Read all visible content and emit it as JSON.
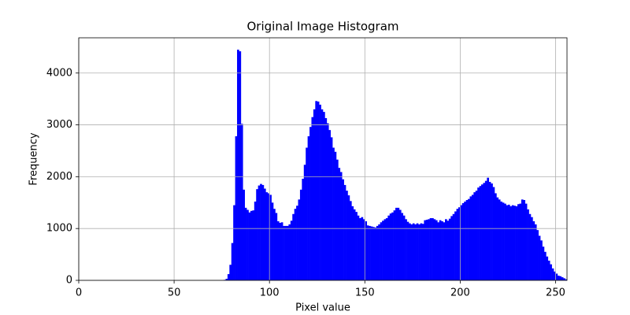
{
  "chart_data": {
    "type": "histogram",
    "title": "Original Image Histogram",
    "xlabel": "Pixel value",
    "ylabel": "Frequency",
    "color": "#0000ff",
    "grid": true,
    "bins": [
      0,
      1,
      2,
      3,
      4,
      5,
      6,
      7,
      8,
      9,
      10,
      11,
      12,
      13,
      14,
      15,
      16,
      17,
      18,
      19,
      20,
      21,
      22,
      23,
      24,
      25,
      26,
      27,
      28,
      29,
      30,
      31,
      32,
      33,
      34,
      35,
      36,
      37,
      38,
      39,
      40,
      41,
      42,
      43,
      44,
      45,
      46,
      47,
      48,
      49,
      50,
      51,
      52,
      53,
      54,
      55,
      56,
      57,
      58,
      59,
      60,
      61,
      62,
      63,
      64,
      65,
      66,
      67,
      68,
      69,
      70,
      71,
      72,
      73,
      74,
      75,
      76,
      77,
      78,
      79,
      80,
      81,
      82,
      83,
      84,
      85,
      86,
      87,
      88,
      89,
      90,
      91,
      92,
      93,
      94,
      95,
      96,
      97,
      98,
      99,
      100,
      101,
      102,
      103,
      104,
      105,
      106,
      107,
      108,
      109,
      110,
      111,
      112,
      113,
      114,
      115,
      116,
      117,
      118,
      119,
      120,
      121,
      122,
      123,
      124,
      125,
      126,
      127,
      128,
      129,
      130,
      131,
      132,
      133,
      134,
      135,
      136,
      137,
      138,
      139,
      140,
      141,
      142,
      143,
      144,
      145,
      146,
      147,
      148,
      149,
      150,
      151,
      152,
      153,
      154,
      155,
      156,
      157,
      158,
      159,
      160,
      161,
      162,
      163,
      164,
      165,
      166,
      167,
      168,
      169,
      170,
      171,
      172,
      173,
      174,
      175,
      176,
      177,
      178,
      179,
      180,
      181,
      182,
      183,
      184,
      185,
      186,
      187,
      188,
      189,
      190,
      191,
      192,
      193,
      194,
      195,
      196,
      197,
      198,
      199,
      200,
      201,
      202,
      203,
      204,
      205,
      206,
      207,
      208,
      209,
      210,
      211,
      212,
      213,
      214,
      215,
      216,
      217,
      218,
      219,
      220,
      221,
      222,
      223,
      224,
      225,
      226,
      227,
      228,
      229,
      230,
      231,
      232,
      233,
      234,
      235,
      236,
      237,
      238,
      239,
      240,
      241,
      242,
      243,
      244,
      245,
      246,
      247,
      248,
      249,
      250,
      251,
      252,
      253,
      254,
      255,
      256
    ],
    "values": [
      0,
      0,
      0,
      0,
      0,
      0,
      0,
      0,
      0,
      0,
      0,
      0,
      0,
      0,
      0,
      0,
      0,
      0,
      0,
      0,
      0,
      0,
      0,
      0,
      0,
      0,
      0,
      0,
      0,
      0,
      0,
      0,
      0,
      0,
      0,
      0,
      0,
      0,
      0,
      0,
      0,
      0,
      0,
      0,
      0,
      0,
      0,
      0,
      0,
      0,
      0,
      0,
      0,
      0,
      0,
      0,
      0,
      0,
      0,
      0,
      0,
      0,
      0,
      0,
      0,
      0,
      0,
      0,
      0,
      0,
      0,
      0,
      0,
      0,
      0,
      0,
      10,
      30,
      120,
      300,
      720,
      1450,
      2780,
      4450,
      4420,
      3020,
      1750,
      1400,
      1360,
      1310,
      1340,
      1350,
      1520,
      1760,
      1830,
      1860,
      1840,
      1770,
      1700,
      1680,
      1650,
      1500,
      1380,
      1300,
      1140,
      1110,
      1120,
      1050,
      1050,
      1050,
      1080,
      1150,
      1280,
      1380,
      1440,
      1560,
      1750,
      1960,
      2230,
      2560,
      2780,
      2960,
      3150,
      3300,
      3460,
      3450,
      3390,
      3300,
      3250,
      3130,
      3030,
      2900,
      2760,
      2560,
      2480,
      2330,
      2170,
      2090,
      1950,
      1840,
      1730,
      1640,
      1530,
      1430,
      1370,
      1320,
      1250,
      1200,
      1220,
      1180,
      1140,
      1060,
      1050,
      1040,
      1030,
      1020,
      1050,
      1080,
      1120,
      1150,
      1180,
      1200,
      1250,
      1290,
      1310,
      1350,
      1400,
      1400,
      1360,
      1300,
      1250,
      1180,
      1130,
      1100,
      1080,
      1100,
      1080,
      1100,
      1080,
      1100,
      1090,
      1160,
      1170,
      1180,
      1200,
      1200,
      1180,
      1160,
      1120,
      1160,
      1140,
      1120,
      1180,
      1150,
      1190,
      1240,
      1280,
      1330,
      1380,
      1410,
      1450,
      1490,
      1520,
      1550,
      1570,
      1620,
      1650,
      1700,
      1730,
      1790,
      1820,
      1850,
      1880,
      1920,
      1980,
      1900,
      1870,
      1800,
      1680,
      1600,
      1560,
      1520,
      1500,
      1480,
      1450,
      1460,
      1430,
      1450,
      1440,
      1430,
      1470,
      1480,
      1560,
      1550,
      1480,
      1370,
      1280,
      1220,
      1140,
      1080,
      970,
      860,
      770,
      650,
      550,
      460,
      380,
      310,
      230,
      170,
      130,
      90,
      80,
      60,
      40,
      20
    ],
    "xlim": [
      0,
      256
    ],
    "xticks": [
      0,
      50,
      100,
      150,
      200,
      250
    ],
    "ylim": [
      0,
      4680
    ],
    "yticks": [
      0,
      1000,
      2000,
      3000,
      4000
    ]
  }
}
